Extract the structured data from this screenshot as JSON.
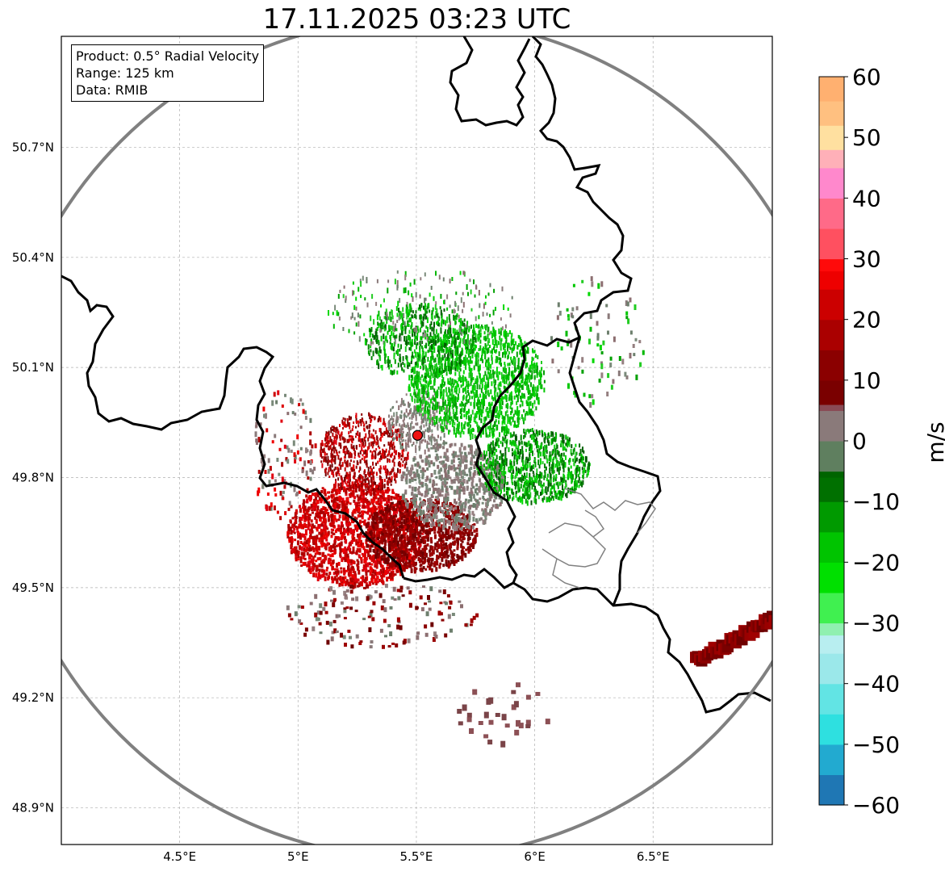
{
  "title": "17.11.2025 03:23 UTC",
  "info": {
    "product": "Product: 0.5° Radial Velocity",
    "range": "Range: 125 km",
    "data": "Data: RMIB"
  },
  "map": {
    "lon_range": [
      4.0,
      7.0
    ],
    "lat_range": [
      48.8,
      51.0
    ],
    "lon_ticks": [
      {
        "value": 4.5,
        "label": "4.5°E"
      },
      {
        "value": 5.0,
        "label": "5°E"
      },
      {
        "value": 5.5,
        "label": "5.5°E"
      },
      {
        "value": 6.0,
        "label": "6°E"
      },
      {
        "value": 6.5,
        "label": "6.5°E"
      }
    ],
    "lat_ticks": [
      {
        "value": 50.7,
        "label": "50.7°N"
      },
      {
        "value": 50.4,
        "label": "50.4°N"
      },
      {
        "value": 50.1,
        "label": "50.1°N"
      },
      {
        "value": 49.8,
        "label": "49.8°N"
      },
      {
        "value": 49.5,
        "label": "49.5°N"
      },
      {
        "value": 49.2,
        "label": "49.2°N"
      },
      {
        "value": 48.9,
        "label": "48.9°N"
      }
    ],
    "radar_site": {
      "lon": 5.505,
      "lat": 49.915
    },
    "range_km": 125,
    "grid": true
  },
  "colorbar": {
    "label": "m/s",
    "min": -60,
    "max": 60,
    "ticks": [
      {
        "value": 60,
        "label": "60"
      },
      {
        "value": 50,
        "label": "50"
      },
      {
        "value": 40,
        "label": "40"
      },
      {
        "value": 30,
        "label": "30"
      },
      {
        "value": 20,
        "label": "20"
      },
      {
        "value": 10,
        "label": "10"
      },
      {
        "value": 0,
        "label": "0"
      },
      {
        "value": -10,
        "label": "−10"
      },
      {
        "value": -20,
        "label": "−20"
      },
      {
        "value": -30,
        "label": "−30"
      },
      {
        "value": -40,
        "label": "−40"
      },
      {
        "value": -50,
        "label": "−50"
      },
      {
        "value": -60,
        "label": "−60"
      }
    ],
    "colors": {
      "inbound_strong": "#1f77b4",
      "inbound_cyan": "#2ee0e0",
      "inbound_light": "#b8eef0",
      "inbound_green": "#00dd00",
      "inbound_dark_green": "#006400",
      "zero_gray": "#8a7a7a",
      "outbound_dark_red": "#6e0000",
      "outbound_red": "#ee0000",
      "outbound_pink": "#ff88cc",
      "outbound_orange": "#ff9f5f"
    }
  }
}
